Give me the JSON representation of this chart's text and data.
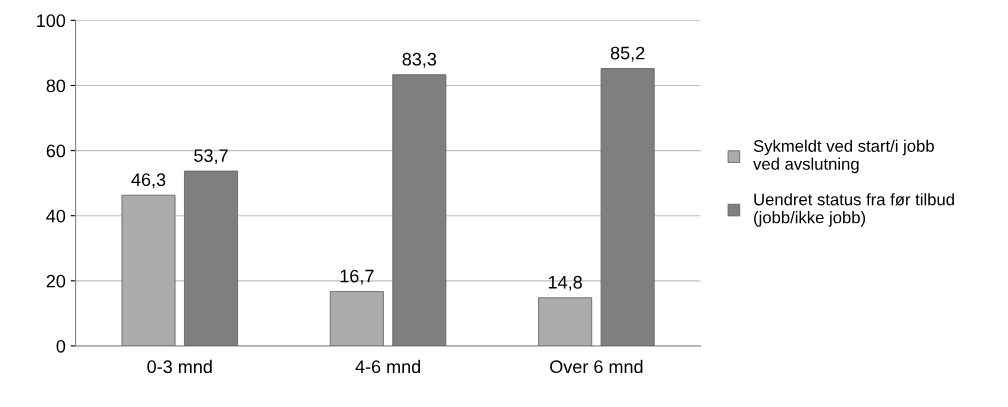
{
  "chart_data": {
    "type": "bar",
    "categories": [
      "0-3 mnd",
      "4-6 mnd",
      "Over 6 mnd"
    ],
    "series": [
      {
        "name": "Sykmeldt ved start/i jobb\nved avslutning",
        "color": "#ababab",
        "values": [
          46.3,
          16.7,
          14.8
        ],
        "value_labels": [
          "46,3",
          "16,7",
          "14,8"
        ]
      },
      {
        "name": "Uendret status fra før tilbud\n(jobb/ikke jobb)",
        "color": "#7f7f7f",
        "values": [
          53.7,
          83.3,
          85.2
        ],
        "value_labels": [
          "53,7",
          "83,3",
          "85,2"
        ]
      }
    ],
    "ylim": [
      0,
      100
    ],
    "yticks": [
      0,
      20,
      40,
      60,
      80,
      100
    ],
    "grid": "y",
    "legend": "right"
  }
}
